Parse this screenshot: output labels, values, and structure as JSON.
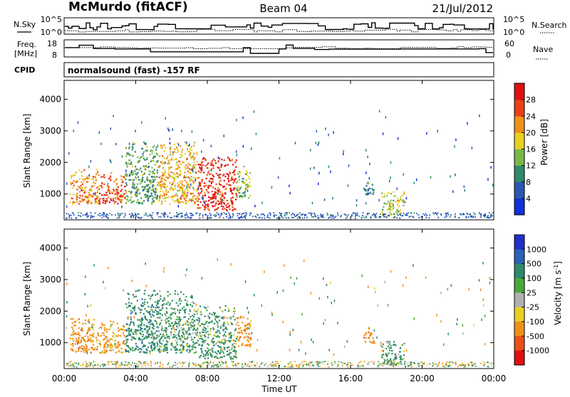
{
  "header": {
    "station": "McMurdo (fitACF)",
    "beam": "Beam 04",
    "date": "21/Jul/2012"
  },
  "noise_panel": {
    "left_label": "N.Sky",
    "left_ticks": [
      "10^5",
      "10^0"
    ],
    "right_label": "N.Search",
    "right_ticks": [
      "10^5",
      "10^0"
    ]
  },
  "freq_panel": {
    "left_label_1": "Freq.",
    "left_label_2": "[MHz]",
    "left_ticks": [
      "18",
      "8"
    ],
    "right_label": "Nave",
    "right_ticks": [
      "60",
      "0"
    ]
  },
  "cpid": {
    "label": "CPID",
    "value": "normalsound (fast) -157 RF"
  },
  "chart_data": [
    {
      "type": "heatmap",
      "name": "power",
      "ylabel": "Slant Range [km]",
      "yticks": [
        "1000",
        "2000",
        "3000",
        "4000"
      ],
      "ylim": [
        180,
        4600
      ],
      "colorbar": {
        "label": "Power [dB]",
        "ticks": [
          "4",
          "8",
          "12",
          "16",
          "20",
          "24",
          "28"
        ],
        "range": [
          0,
          32
        ],
        "colors": [
          "#1030d8",
          "#2a58b0",
          "#2e8a6a",
          "#7ab848",
          "#e8d020",
          "#f09018",
          "#e84018",
          "#e01010"
        ]
      },
      "echo_regions": [
        {
          "t_start_h": 0.3,
          "t_end_h": 1.9,
          "range_lo_km": 700,
          "range_hi_km": 1800,
          "power_db": 22
        },
        {
          "t_start_h": 1.9,
          "t_end_h": 3.4,
          "range_lo_km": 700,
          "range_hi_km": 1700,
          "power_db": 26
        },
        {
          "t_start_h": 3.4,
          "t_end_h": 5.2,
          "range_lo_km": 700,
          "range_hi_km": 2700,
          "power_db": 12
        },
        {
          "t_start_h": 5.2,
          "t_end_h": 7.4,
          "range_lo_km": 700,
          "range_hi_km": 2700,
          "power_db": 20
        },
        {
          "t_start_h": 7.4,
          "t_end_h": 9.6,
          "range_lo_km": 500,
          "range_hi_km": 2200,
          "power_db": 28
        },
        {
          "t_start_h": 9.6,
          "t_end_h": 10.4,
          "range_lo_km": 900,
          "range_hi_km": 1900,
          "power_db": 14
        },
        {
          "t_start_h": 16.7,
          "t_end_h": 17.3,
          "range_lo_km": 1000,
          "range_hi_km": 1500,
          "power_db": 10
        },
        {
          "t_start_h": 17.7,
          "t_end_h": 19.0,
          "range_lo_km": 300,
          "range_hi_km": 1100,
          "power_db": 16
        }
      ]
    },
    {
      "type": "heatmap",
      "name": "velocity",
      "ylabel": "Slant Range [km]",
      "yticks": [
        "1000",
        "2000",
        "3000",
        "4000"
      ],
      "ylim": [
        180,
        4600
      ],
      "xlabel": "Time UT",
      "xticks": [
        "00:00",
        "04:00",
        "08:00",
        "12:00",
        "16:00",
        "20:00",
        "00:00"
      ],
      "xlim": [
        0,
        24
      ],
      "colorbar": {
        "label": "Velocity [m s",
        "label_sup": "-1",
        "label_end": "]",
        "ticks": [
          "1000",
          "500",
          "100",
          "25",
          "-25",
          "-100",
          "-500",
          "-1000"
        ],
        "colors": [
          "#2030c8",
          "#2a60b8",
          "#2e8a6a",
          "#4aa838",
          "#b0b0b0",
          "#e8d020",
          "#f09018",
          "#e85018",
          "#e01010"
        ]
      },
      "echo_regions": [
        {
          "t_start_h": 0.3,
          "t_end_h": 1.9,
          "range_lo_km": 700,
          "range_hi_km": 1800,
          "velocity_ms": -300
        },
        {
          "t_start_h": 1.9,
          "t_end_h": 3.4,
          "range_lo_km": 700,
          "range_hi_km": 1700,
          "velocity_ms": -200
        },
        {
          "t_start_h": 3.4,
          "t_end_h": 5.2,
          "range_lo_km": 700,
          "range_hi_km": 2700,
          "velocity_ms": 300
        },
        {
          "t_start_h": 5.2,
          "t_end_h": 7.4,
          "range_lo_km": 700,
          "range_hi_km": 2700,
          "velocity_ms": 200
        },
        {
          "t_start_h": 7.4,
          "t_end_h": 9.6,
          "range_lo_km": 500,
          "range_hi_km": 2200,
          "velocity_ms": 150
        },
        {
          "t_start_h": 9.6,
          "t_end_h": 10.4,
          "range_lo_km": 900,
          "range_hi_km": 1900,
          "velocity_ms": -300
        },
        {
          "t_start_h": 16.7,
          "t_end_h": 17.3,
          "range_lo_km": 1000,
          "range_hi_km": 1500,
          "velocity_ms": -300
        },
        {
          "t_start_h": 17.7,
          "t_end_h": 19.0,
          "range_lo_km": 300,
          "range_hi_km": 1100,
          "velocity_ms": 200
        }
      ]
    }
  ]
}
